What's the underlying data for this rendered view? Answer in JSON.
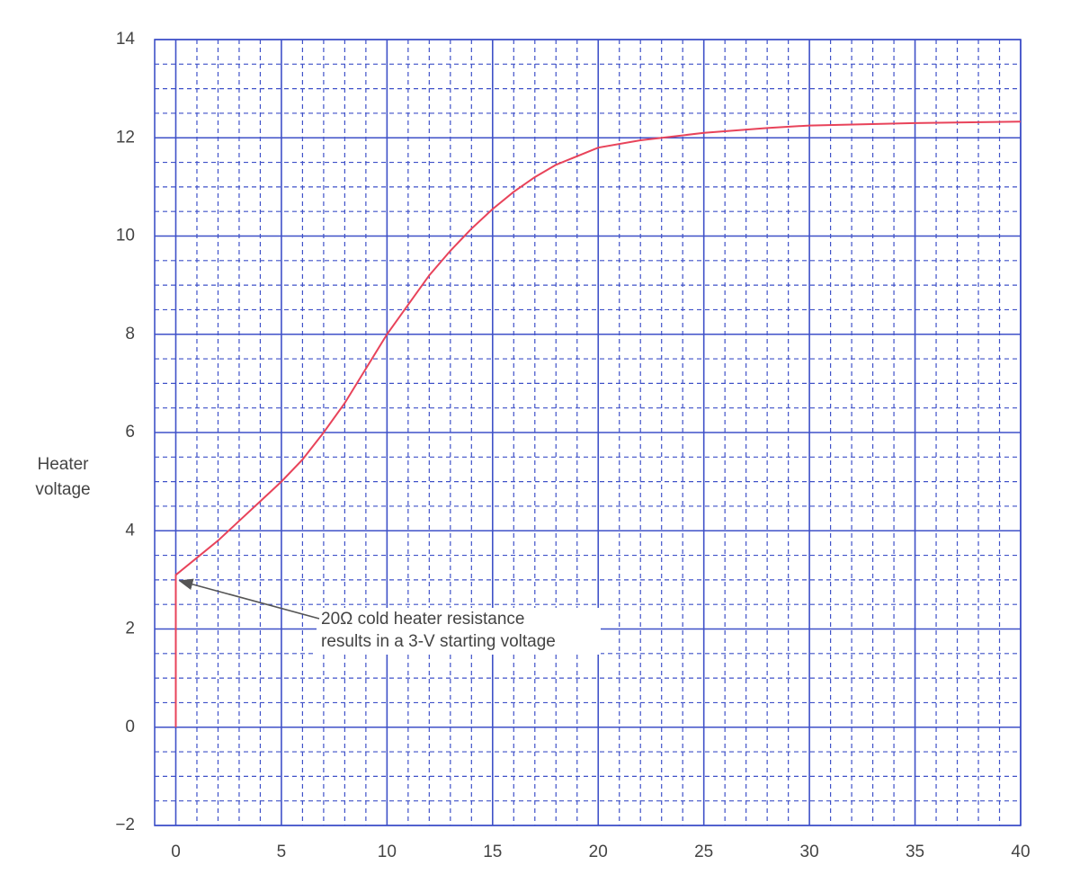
{
  "chart_data": {
    "type": "line",
    "ylabel": [
      "Heater",
      "voltage"
    ],
    "annotation": [
      "20Ω cold heater resistance",
      "results in a 3-V starting voltage"
    ],
    "x": [
      0,
      0,
      1,
      2,
      3,
      4,
      5,
      6,
      7,
      8,
      9,
      10,
      11,
      12,
      13,
      14,
      15,
      16,
      17,
      18,
      20,
      22,
      25,
      28,
      30,
      35,
      40
    ],
    "series": [
      {
        "color": "#e8435a",
        "values": [
          0,
          3.1,
          3.45,
          3.8,
          4.2,
          4.6,
          5.0,
          5.45,
          6.0,
          6.6,
          7.3,
          8.0,
          8.6,
          9.2,
          9.7,
          10.15,
          10.55,
          10.9,
          11.2,
          11.45,
          11.8,
          11.95,
          12.1,
          12.2,
          12.25,
          12.3,
          12.33
        ]
      }
    ],
    "xlim": [
      -1,
      40
    ],
    "ylim": [
      -2,
      14
    ],
    "xticks": [
      0,
      5,
      10,
      15,
      20,
      25,
      30,
      35,
      40
    ],
    "yticks": [
      {
        "value": -2,
        "label": "−2"
      },
      0,
      2,
      4,
      6,
      8,
      10,
      12,
      14
    ],
    "xminorticks": [
      1,
      2,
      3,
      4,
      6,
      7,
      8,
      9,
      11,
      12,
      13,
      14,
      16,
      17,
      18,
      19,
      21,
      22,
      23,
      24,
      26,
      27,
      28,
      29,
      31,
      32,
      33,
      34,
      36,
      37,
      38,
      39
    ],
    "yminorticks": [
      -1.5,
      -1,
      -0.5,
      0.5,
      1,
      1.5,
      2.5,
      3,
      3.5,
      4.5,
      5,
      5.5,
      6.5,
      7,
      7.5,
      8.5,
      9,
      9.5,
      10.5,
      11,
      11.5,
      12.5,
      13,
      13.5
    ],
    "grid": true,
    "grid_color": "#3f51c8"
  }
}
